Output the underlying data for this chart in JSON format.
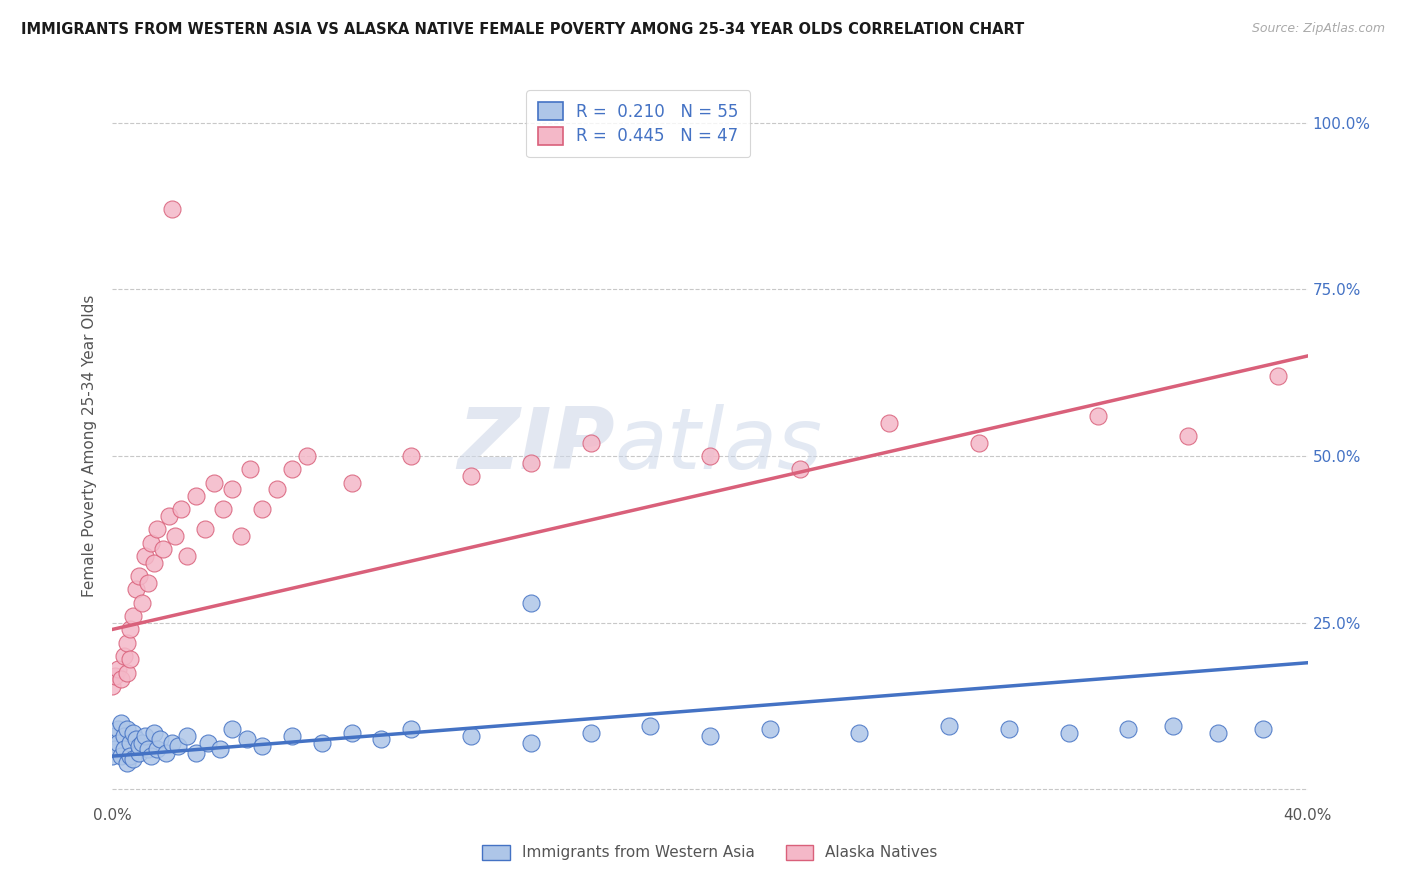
{
  "title": "IMMIGRANTS FROM WESTERN ASIA VS ALASKA NATIVE FEMALE POVERTY AMONG 25-34 YEAR OLDS CORRELATION CHART",
  "source": "Source: ZipAtlas.com",
  "ylabel": "Female Poverty Among 25-34 Year Olds",
  "xlim": [
    0.0,
    0.4
  ],
  "ylim": [
    -0.02,
    1.05
  ],
  "blue_R": 0.21,
  "blue_N": 55,
  "pink_R": 0.445,
  "pink_N": 47,
  "blue_color": "#aec6e8",
  "blue_line_color": "#4472c4",
  "pink_color": "#f4b8c8",
  "pink_line_color": "#d9607a",
  "legend_label_blue": "Immigrants from Western Asia",
  "legend_label_pink": "Alaska Natives",
  "blue_scatter_x": [
    0.0,
    0.001,
    0.001,
    0.002,
    0.002,
    0.003,
    0.003,
    0.004,
    0.004,
    0.005,
    0.005,
    0.006,
    0.006,
    0.007,
    0.007,
    0.008,
    0.009,
    0.009,
    0.01,
    0.011,
    0.012,
    0.013,
    0.014,
    0.015,
    0.016,
    0.018,
    0.02,
    0.022,
    0.025,
    0.028,
    0.032,
    0.036,
    0.04,
    0.045,
    0.05,
    0.06,
    0.07,
    0.08,
    0.09,
    0.1,
    0.12,
    0.14,
    0.16,
    0.18,
    0.2,
    0.22,
    0.25,
    0.28,
    0.3,
    0.32,
    0.34,
    0.355,
    0.37,
    0.385,
    0.14
  ],
  "blue_scatter_y": [
    0.05,
    0.08,
    0.06,
    0.09,
    0.07,
    0.1,
    0.05,
    0.08,
    0.06,
    0.09,
    0.04,
    0.07,
    0.05,
    0.085,
    0.045,
    0.075,
    0.055,
    0.065,
    0.07,
    0.08,
    0.06,
    0.05,
    0.085,
    0.06,
    0.075,
    0.055,
    0.07,
    0.065,
    0.08,
    0.055,
    0.07,
    0.06,
    0.09,
    0.075,
    0.065,
    0.08,
    0.07,
    0.085,
    0.075,
    0.09,
    0.08,
    0.07,
    0.085,
    0.095,
    0.08,
    0.09,
    0.085,
    0.095,
    0.09,
    0.085,
    0.09,
    0.095,
    0.085,
    0.09,
    0.28
  ],
  "pink_scatter_x": [
    0.0,
    0.001,
    0.002,
    0.003,
    0.004,
    0.005,
    0.005,
    0.006,
    0.006,
    0.007,
    0.008,
    0.009,
    0.01,
    0.011,
    0.012,
    0.013,
    0.014,
    0.015,
    0.017,
    0.019,
    0.021,
    0.023,
    0.025,
    0.028,
    0.031,
    0.034,
    0.037,
    0.04,
    0.043,
    0.046,
    0.05,
    0.055,
    0.06,
    0.065,
    0.08,
    0.1,
    0.12,
    0.14,
    0.16,
    0.2,
    0.23,
    0.26,
    0.29,
    0.33,
    0.36,
    0.39,
    0.02
  ],
  "pink_scatter_y": [
    0.155,
    0.17,
    0.18,
    0.165,
    0.2,
    0.22,
    0.175,
    0.24,
    0.195,
    0.26,
    0.3,
    0.32,
    0.28,
    0.35,
    0.31,
    0.37,
    0.34,
    0.39,
    0.36,
    0.41,
    0.38,
    0.42,
    0.35,
    0.44,
    0.39,
    0.46,
    0.42,
    0.45,
    0.38,
    0.48,
    0.42,
    0.45,
    0.48,
    0.5,
    0.46,
    0.5,
    0.47,
    0.49,
    0.52,
    0.5,
    0.48,
    0.55,
    0.52,
    0.56,
    0.53,
    0.62,
    0.87
  ],
  "watermark_zip": "ZIP",
  "watermark_atlas": "atlas",
  "background_color": "#ffffff",
  "grid_color": "#c8c8c8"
}
